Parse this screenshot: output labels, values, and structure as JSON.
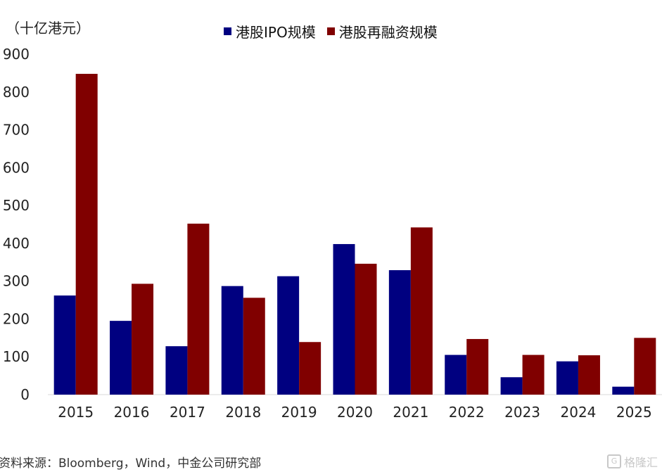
{
  "chart_data": {
    "type": "bar",
    "unit_label": "（十亿港元）",
    "categories": [
      "2015",
      "2016",
      "2017",
      "2018",
      "2019",
      "2020",
      "2021",
      "2022",
      "2023",
      "2024",
      "2025"
    ],
    "series": [
      {
        "name": "港股IPO规模",
        "color": "#000080",
        "values": [
          262,
          195,
          128,
          287,
          313,
          398,
          329,
          105,
          46,
          88,
          21
        ]
      },
      {
        "name": "港股再融资规模",
        "color": "#800000",
        "values": [
          848,
          293,
          452,
          256,
          139,
          346,
          442,
          147,
          105,
          104,
          150
        ]
      }
    ],
    "y_ticks": [
      "0",
      "100",
      "200",
      "300",
      "400",
      "500",
      "600",
      "700",
      "800",
      "900"
    ],
    "ylim": [
      0,
      900
    ],
    "grid": false,
    "legend_position": "top"
  },
  "footer": {
    "source": "资料来源：Bloomberg，Wind，中金公司研究部",
    "watermark_icon": "gelonghui-logo-icon",
    "watermark_text": "格隆汇"
  }
}
